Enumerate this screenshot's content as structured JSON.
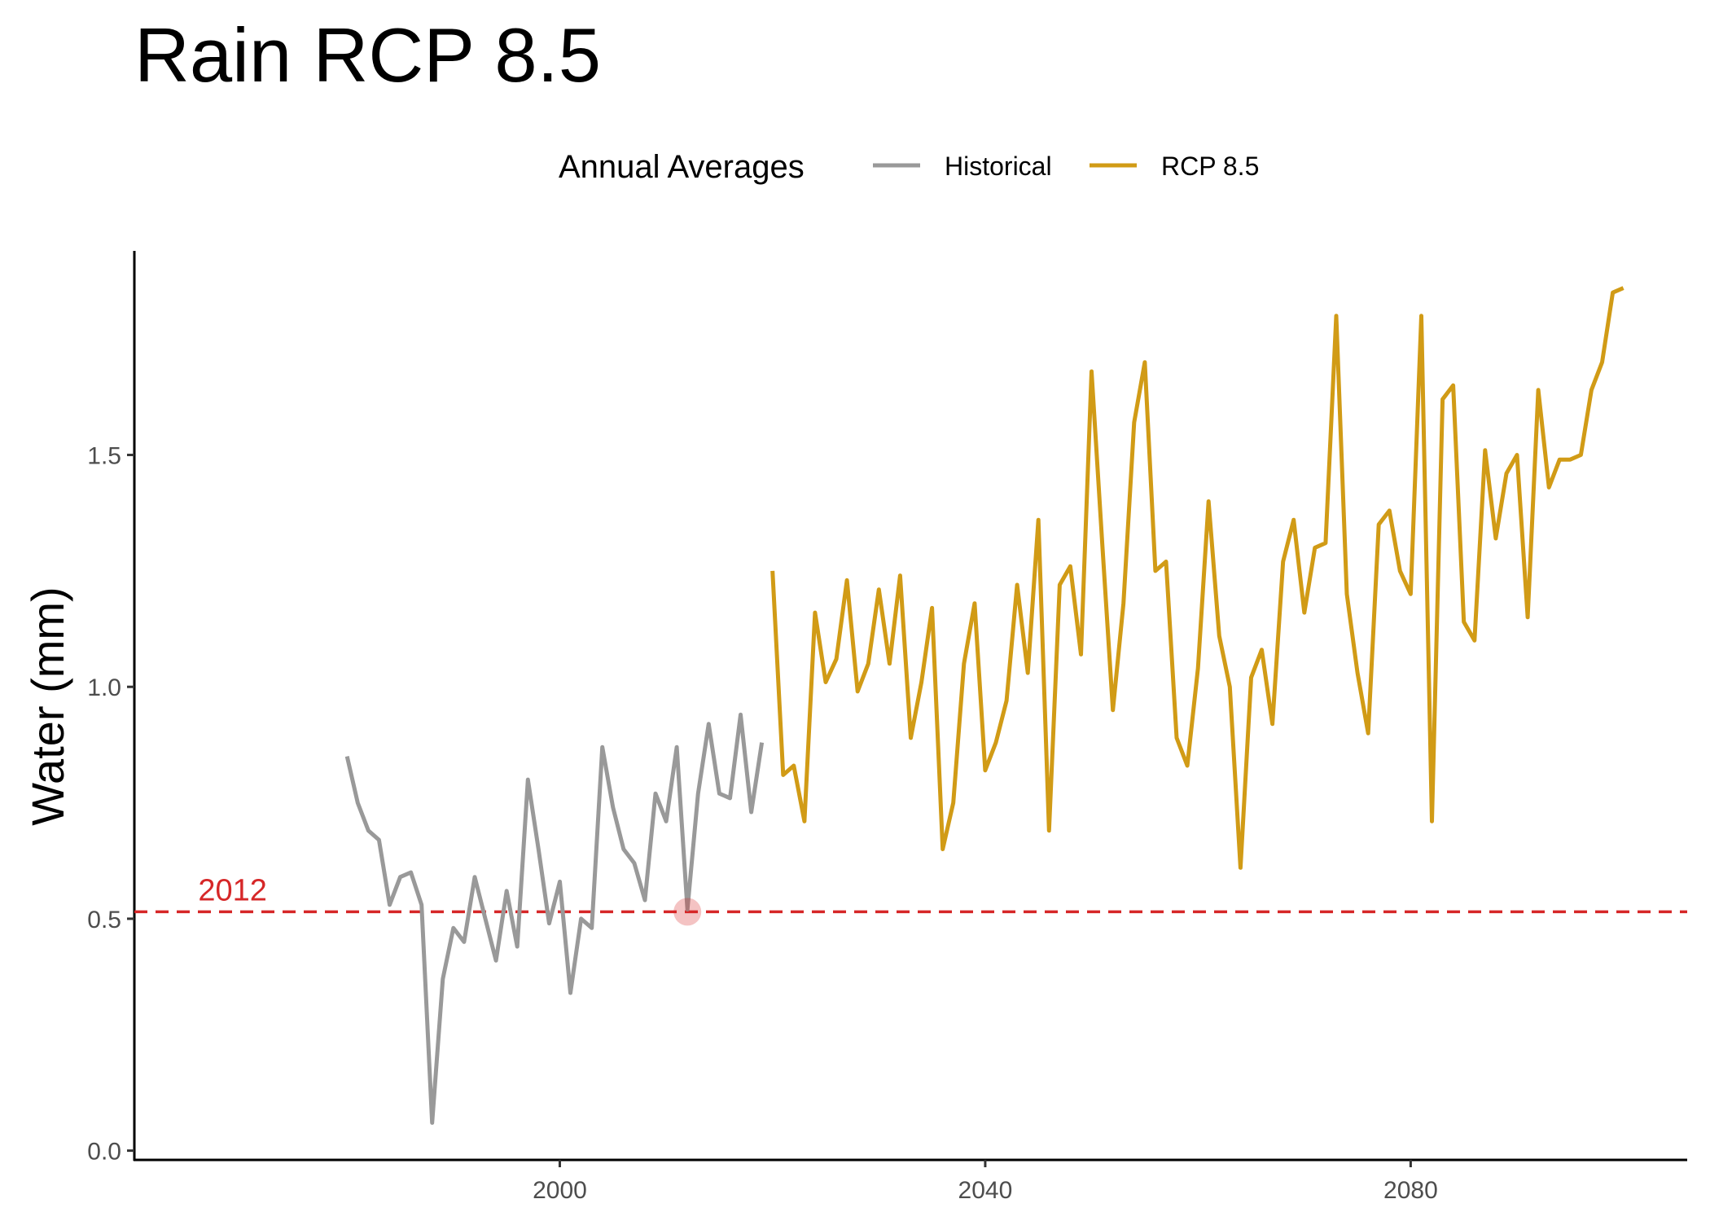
{
  "chart_data": {
    "type": "line",
    "title": "Rain RCP 8.5",
    "xlabel": "",
    "ylabel": "Water (mm)",
    "xlim": [
      1960,
      2106
    ],
    "ylim": [
      -0.02,
      1.94
    ],
    "xticks": [
      2000,
      2040,
      2080
    ],
    "yticks": [
      0.0,
      0.5,
      1.0,
      1.5
    ],
    "xtick_labels": [
      "2000",
      "2040",
      "2080"
    ],
    "ytick_labels": [
      "0.0",
      "0.5",
      "1.0",
      "1.5"
    ],
    "grid": false,
    "legend": {
      "title": "Annual Averages",
      "position": "top",
      "entries": [
        "Historical",
        "RCP 8.5"
      ]
    },
    "reference_line": {
      "y": 0.515,
      "label": "2012",
      "color": "#d62728",
      "style": "dashed"
    },
    "highlight_point": {
      "x": 2012,
      "y": 0.515,
      "color": "#d62728"
    },
    "series": [
      {
        "name": "Historical",
        "color": "#999999",
        "x": [
          1980,
          1981,
          1982,
          1983,
          1984,
          1985,
          1986,
          1987,
          1988,
          1989,
          1990,
          1991,
          1992,
          1993,
          1994,
          1995,
          1996,
          1997,
          1998,
          1999,
          2000,
          2001,
          2002,
          2003,
          2004,
          2005,
          2006,
          2007,
          2008,
          2009,
          2010,
          2011,
          2012,
          2013,
          2014,
          2015,
          2016,
          2017,
          2018,
          2019
        ],
        "y": [
          0.85,
          0.75,
          0.69,
          0.67,
          0.53,
          0.59,
          0.6,
          0.53,
          0.06,
          0.37,
          0.48,
          0.45,
          0.59,
          0.5,
          0.41,
          0.56,
          0.44,
          0.8,
          0.65,
          0.49,
          0.58,
          0.34,
          0.5,
          0.48,
          0.87,
          0.74,
          0.65,
          0.62,
          0.54,
          0.77,
          0.71,
          0.87,
          0.52,
          0.77,
          0.92,
          0.77,
          0.76,
          0.94,
          0.73,
          0.88
        ]
      },
      {
        "name": "RCP 8.5",
        "color": "#d19b16",
        "x": [
          2020,
          2021,
          2022,
          2023,
          2024,
          2025,
          2026,
          2027,
          2028,
          2029,
          2030,
          2031,
          2032,
          2033,
          2034,
          2035,
          2036,
          2037,
          2038,
          2039,
          2040,
          2041,
          2042,
          2043,
          2044,
          2045,
          2046,
          2047,
          2048,
          2049,
          2050,
          2051,
          2052,
          2053,
          2054,
          2055,
          2056,
          2057,
          2058,
          2059,
          2060,
          2061,
          2062,
          2063,
          2064,
          2065,
          2066,
          2067,
          2068,
          2069,
          2070,
          2071,
          2072,
          2073,
          2074,
          2075,
          2076,
          2077,
          2078,
          2079,
          2080,
          2081,
          2082,
          2083,
          2084,
          2085,
          2086,
          2087,
          2088,
          2089,
          2090,
          2091,
          2092,
          2093,
          2094,
          2095,
          2096,
          2097,
          2098,
          2099,
          2100
        ],
        "y": [
          1.25,
          0.81,
          0.83,
          0.71,
          1.16,
          1.01,
          1.06,
          1.23,
          0.99,
          1.05,
          1.21,
          1.05,
          1.24,
          0.89,
          1.01,
          1.17,
          0.65,
          0.75,
          1.05,
          1.18,
          0.82,
          0.88,
          0.97,
          1.22,
          1.03,
          1.36,
          0.69,
          1.22,
          1.26,
          1.07,
          1.68,
          1.31,
          0.95,
          1.18,
          1.57,
          1.7,
          1.25,
          1.27,
          0.89,
          0.83,
          1.04,
          1.4,
          1.11,
          1.0,
          0.61,
          1.02,
          1.08,
          0.92,
          1.27,
          1.36,
          1.16,
          1.3,
          1.31,
          1.8,
          1.2,
          1.03,
          0.9,
          1.35,
          1.38,
          1.25,
          1.2,
          1.8,
          0.71,
          1.62,
          1.65,
          1.14,
          1.1,
          1.51,
          1.32,
          1.46,
          1.5,
          1.15,
          1.64,
          1.43,
          1.49,
          1.49,
          1.5,
          1.64,
          1.7,
          1.85,
          1.86
        ]
      }
    ]
  }
}
